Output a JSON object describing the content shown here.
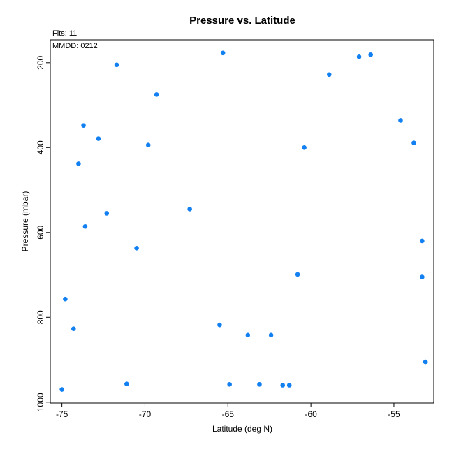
{
  "chart_data": {
    "type": "scatter",
    "title": "Pressure vs. Latitude",
    "xlabel": "Latitude (deg N)",
    "ylabel": "Pressure (mbar)",
    "annotations": {
      "flts": "Flts: 11",
      "mmdd": "MMDD: 0212"
    },
    "xlim": [
      -75.7,
      -52.6
    ],
    "ylim": [
      1002,
      146
    ],
    "y_inverted": true,
    "grid": false,
    "x_ticks": [
      -75,
      -70,
      -65,
      -60,
      -55
    ],
    "x_tick_labels": [
      "-75",
      "-70",
      "-65",
      "-60",
      "-55"
    ],
    "y_ticks": [
      200,
      400,
      600,
      800,
      1000
    ],
    "y_tick_labels": [
      "200",
      "400",
      "600",
      "800",
      "1000"
    ],
    "marker_color": "#1280f0",
    "points": [
      {
        "x": -75.0,
        "y": 970
      },
      {
        "x": -74.8,
        "y": 757
      },
      {
        "x": -74.3,
        "y": 827
      },
      {
        "x": -74.0,
        "y": 438
      },
      {
        "x": -73.7,
        "y": 348
      },
      {
        "x": -73.6,
        "y": 586
      },
      {
        "x": -72.8,
        "y": 379
      },
      {
        "x": -72.3,
        "y": 555
      },
      {
        "x": -71.7,
        "y": 205
      },
      {
        "x": -71.1,
        "y": 957
      },
      {
        "x": -70.5,
        "y": 637
      },
      {
        "x": -69.8,
        "y": 394
      },
      {
        "x": -69.3,
        "y": 275
      },
      {
        "x": -67.3,
        "y": 545
      },
      {
        "x": -65.5,
        "y": 818
      },
      {
        "x": -65.3,
        "y": 177
      },
      {
        "x": -64.9,
        "y": 958
      },
      {
        "x": -63.8,
        "y": 842
      },
      {
        "x": -63.1,
        "y": 958
      },
      {
        "x": -62.4,
        "y": 842
      },
      {
        "x": -61.7,
        "y": 960
      },
      {
        "x": -61.3,
        "y": 960
      },
      {
        "x": -60.8,
        "y": 699
      },
      {
        "x": -60.4,
        "y": 400
      },
      {
        "x": -58.9,
        "y": 228
      },
      {
        "x": -57.1,
        "y": 186
      },
      {
        "x": -56.4,
        "y": 181
      },
      {
        "x": -54.6,
        "y": 336
      },
      {
        "x": -53.8,
        "y": 389
      },
      {
        "x": -53.3,
        "y": 620
      },
      {
        "x": -53.3,
        "y": 705
      },
      {
        "x": -53.1,
        "y": 905
      }
    ]
  }
}
